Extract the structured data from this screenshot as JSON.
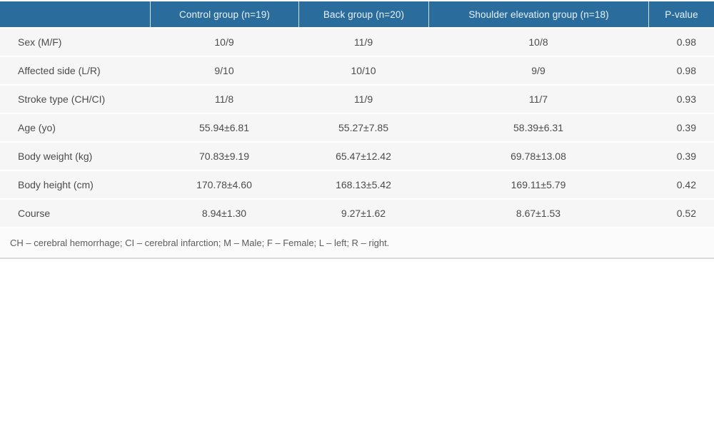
{
  "table": {
    "columns": [
      "",
      "Control group (n=19)",
      "Back group (n=20)",
      "Shoulder elevation group (n=18)",
      "P-value"
    ],
    "rows": [
      {
        "label": "Sex (M/F)",
        "values": [
          "10/9",
          "11/9",
          "10/8",
          "0.98"
        ]
      },
      {
        "label": "Affected side (L/R)",
        "values": [
          "9/10",
          "10/10",
          "9/9",
          "0.98"
        ]
      },
      {
        "label": "Stroke type (CH/CI)",
        "values": [
          "11/8",
          "11/9",
          "11/7",
          "0.93"
        ]
      },
      {
        "label": "Age (yo)",
        "values": [
          "55.94±6.81",
          "55.27±7.85",
          "58.39±6.31",
          "0.39"
        ]
      },
      {
        "label": "Body weight (kg)",
        "values": [
          "70.83±9.19",
          "65.47±12.42",
          "69.78±13.08",
          "0.39"
        ]
      },
      {
        "label": "Body height (cm)",
        "values": [
          "170.78±4.60",
          "168.13±5.42",
          "169.11±5.79",
          "0.42"
        ]
      },
      {
        "label": "Course",
        "values": [
          "8.94±1.30",
          "9.27±1.62",
          "8.67±1.53",
          "0.52"
        ]
      }
    ],
    "footnote": "CH – cerebral hemorrhage; CI – cerebral infarction; M – Male; F – Female; L – left; R – right."
  },
  "colors": {
    "header_bg": "#2a6d9c",
    "header_text": "#e9f1f7",
    "header_divider": "#cfe0eb",
    "row_bg": "#f6f6f6",
    "row_text": "#4c4c4c",
    "footnote_bg": "#fbfbfb",
    "footnote_text": "#5c5c5c",
    "border_line": "#d9d9d9",
    "page_bg": "#ffffff"
  }
}
